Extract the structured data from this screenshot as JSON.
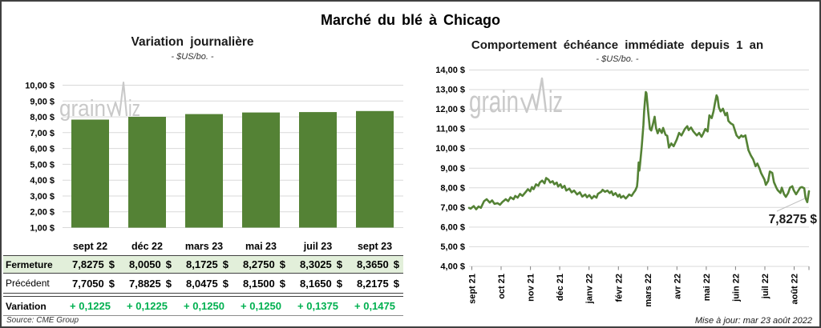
{
  "page": {
    "title": "Marché du blé à Chicago",
    "source": "Source: CME Group",
    "updated": "Mise à jour: mar 23 août 2022",
    "watermark": {
      "part1": "grain",
      "part2": "iz"
    }
  },
  "colors": {
    "green_bar": "#548235",
    "green_text": "#00B050",
    "row_highlight": "#E2EFDA",
    "gridline": "#D9D9D9",
    "watermark": "#C9C9C9",
    "tick": "#808080"
  },
  "table": {
    "col_headers": [
      "sept 22",
      "déc 22",
      "mars 23",
      "mai 23",
      "juil 23",
      "sept 23"
    ],
    "rows": [
      {
        "label": "Fermeture",
        "values": [
          "7,8275",
          "8,0050",
          "8,1725",
          "8,2750",
          "8,3025",
          "8,3650"
        ],
        "currency": "$",
        "highlight": true
      },
      {
        "label": "Précédent",
        "values": [
          "7,7050",
          "7,8825",
          "8,0475",
          "8,1500",
          "8,1650",
          "8,2175"
        ],
        "currency": "$",
        "highlight": false
      },
      {
        "label": "Variation",
        "values": [
          "+ 0,1225",
          "+ 0,1225",
          "+ 0,1250",
          "+ 0,1250",
          "+ 0,1375",
          "+ 0,1475"
        ],
        "positive": true
      }
    ]
  },
  "chart_data": [
    {
      "type": "bar",
      "title": "Variation journalière",
      "subtitle": "- $US/bo. -",
      "categories": [
        "sept 22",
        "déc 22",
        "mars 23",
        "mai 23",
        "juil 23",
        "sept 23"
      ],
      "values": [
        7.8275,
        8.005,
        8.1725,
        8.275,
        8.3025,
        8.365
      ],
      "ylim": [
        1,
        10
      ],
      "ytick_labels": [
        "10,00 $",
        "9,00 $",
        "8,00 $",
        "7,00 $",
        "6,00 $",
        "5,00 $",
        "4,00 $",
        "3,00 $",
        "2,00 $",
        "1,00 $"
      ]
    },
    {
      "type": "line",
      "title": "Comportement échéance immédiate depuis 1 an",
      "subtitle": "- $US/bo. -",
      "x_labels": [
        "sept 21",
        "oct 21",
        "nov 21",
        "déc 21",
        "janv 22",
        "févr 22",
        "mars 22",
        "avr 22",
        "mai 22",
        "juin 22",
        "juil 22",
        "août 22"
      ],
      "ylim": [
        4,
        14
      ],
      "ytick_labels": [
        "14,00 $",
        "13,00 $",
        "12,00 $",
        "11,00 $",
        "10,00 $",
        "9,00 $",
        "8,00 $",
        "7,00 $",
        "6,00 $",
        "5,00 $",
        "4,00 $"
      ],
      "last_value_label": "7,8275 $",
      "points": [
        [
          0,
          6.98
        ],
        [
          0.005,
          6.94
        ],
        [
          0.014,
          7.07
        ],
        [
          0.021,
          6.91
        ],
        [
          0.028,
          7.05
        ],
        [
          0.035,
          6.98
        ],
        [
          0.044,
          7.32
        ],
        [
          0.052,
          7.42
        ],
        [
          0.061,
          7.25
        ],
        [
          0.068,
          7.36
        ],
        [
          0.075,
          7.18
        ],
        [
          0.084,
          7.22
        ],
        [
          0.091,
          7.14
        ],
        [
          0.098,
          7.28
        ],
        [
          0.108,
          7.42
        ],
        [
          0.115,
          7.32
        ],
        [
          0.122,
          7.52
        ],
        [
          0.131,
          7.42
        ],
        [
          0.136,
          7.59
        ],
        [
          0.143,
          7.5
        ],
        [
          0.15,
          7.69
        ],
        [
          0.157,
          7.59
        ],
        [
          0.166,
          7.77
        ],
        [
          0.173,
          7.93
        ],
        [
          0.18,
          7.82
        ],
        [
          0.185,
          8.04
        ],
        [
          0.19,
          7.93
        ],
        [
          0.197,
          8.18
        ],
        [
          0.204,
          8.1
        ],
        [
          0.208,
          8.27
        ],
        [
          0.215,
          8.37
        ],
        [
          0.222,
          8.23
        ],
        [
          0.227,
          8.5
        ],
        [
          0.234,
          8.41
        ],
        [
          0.239,
          8.27
        ],
        [
          0.246,
          8.34
        ],
        [
          0.251,
          8.18
        ],
        [
          0.258,
          8.27
        ],
        [
          0.262,
          8.07
        ],
        [
          0.269,
          8.18
        ],
        [
          0.274,
          8.0
        ],
        [
          0.281,
          8.1
        ],
        [
          0.286,
          7.86
        ],
        [
          0.295,
          7.96
        ],
        [
          0.302,
          7.77
        ],
        [
          0.309,
          7.86
        ],
        [
          0.318,
          7.66
        ],
        [
          0.326,
          7.77
        ],
        [
          0.333,
          7.55
        ],
        [
          0.342,
          7.66
        ],
        [
          0.347,
          7.52
        ],
        [
          0.354,
          7.63
        ],
        [
          0.361,
          7.46
        ],
        [
          0.368,
          7.59
        ],
        [
          0.375,
          7.5
        ],
        [
          0.379,
          7.69
        ],
        [
          0.389,
          7.8
        ],
        [
          0.393,
          7.9
        ],
        [
          0.4,
          7.8
        ],
        [
          0.407,
          7.86
        ],
        [
          0.414,
          7.73
        ],
        [
          0.419,
          7.82
        ],
        [
          0.424,
          7.63
        ],
        [
          0.431,
          7.73
        ],
        [
          0.438,
          7.55
        ],
        [
          0.443,
          7.66
        ],
        [
          0.447,
          7.5
        ],
        [
          0.454,
          7.59
        ],
        [
          0.461,
          7.46
        ],
        [
          0.466,
          7.55
        ],
        [
          0.471,
          7.66
        ],
        [
          0.478,
          7.59
        ],
        [
          0.485,
          7.77
        ],
        [
          0.489,
          7.86
        ],
        [
          0.494,
          8.07
        ],
        [
          0.496,
          8.41
        ],
        [
          0.499,
          9.29
        ],
        [
          0.501,
          8.88
        ],
        [
          0.503,
          9.2
        ],
        [
          0.508,
          10.1
        ],
        [
          0.513,
          11.2
        ],
        [
          0.515,
          11.9
        ],
        [
          0.518,
          12.5
        ],
        [
          0.52,
          12.88
        ],
        [
          0.522,
          12.82
        ],
        [
          0.527,
          11.9
        ],
        [
          0.532,
          11.0
        ],
        [
          0.536,
          10.92
        ],
        [
          0.541,
          11.25
        ],
        [
          0.546,
          11.62
        ],
        [
          0.55,
          11.05
        ],
        [
          0.555,
          10.78
        ],
        [
          0.56,
          11.0
        ],
        [
          0.567,
          10.8
        ],
        [
          0.571,
          11.05
        ],
        [
          0.578,
          10.7
        ],
        [
          0.583,
          10.65
        ],
        [
          0.588,
          10.05
        ],
        [
          0.595,
          10.26
        ],
        [
          0.602,
          10.12
        ],
        [
          0.611,
          10.46
        ],
        [
          0.618,
          10.8
        ],
        [
          0.625,
          10.67
        ],
        [
          0.635,
          11.0
        ],
        [
          0.642,
          11.14
        ],
        [
          0.646,
          10.94
        ],
        [
          0.653,
          11.07
        ],
        [
          0.66,
          10.87
        ],
        [
          0.67,
          10.67
        ],
        [
          0.677,
          10.8
        ],
        [
          0.684,
          10.6
        ],
        [
          0.688,
          10.73
        ],
        [
          0.695,
          11.0
        ],
        [
          0.702,
          10.87
        ],
        [
          0.707,
          11.69
        ],
        [
          0.714,
          11.55
        ],
        [
          0.719,
          11.89
        ],
        [
          0.724,
          12.37
        ],
        [
          0.728,
          12.71
        ],
        [
          0.731,
          12.61
        ],
        [
          0.735,
          12.1
        ],
        [
          0.74,
          11.89
        ],
        [
          0.747,
          12.03
        ],
        [
          0.754,
          11.69
        ],
        [
          0.759,
          11.82
        ],
        [
          0.763,
          11.41
        ],
        [
          0.77,
          11.28
        ],
        [
          0.777,
          11.21
        ],
        [
          0.787,
          10.67
        ],
        [
          0.794,
          10.53
        ],
        [
          0.801,
          10.67
        ],
        [
          0.806,
          10.6
        ],
        [
          0.813,
          10.67
        ],
        [
          0.822,
          9.92
        ],
        [
          0.829,
          9.65
        ],
        [
          0.836,
          9.44
        ],
        [
          0.843,
          9.1
        ],
        [
          0.848,
          9.24
        ],
        [
          0.855,
          8.97
        ],
        [
          0.859,
          8.76
        ],
        [
          0.869,
          8.42
        ],
        [
          0.873,
          8.15
        ],
        [
          0.88,
          8.35
        ],
        [
          0.885,
          8.83
        ],
        [
          0.892,
          8.76
        ],
        [
          0.897,
          8.29
        ],
        [
          0.904,
          8.01
        ],
        [
          0.908,
          7.88
        ],
        [
          0.916,
          7.74
        ],
        [
          0.92,
          8.01
        ],
        [
          0.927,
          7.67
        ],
        [
          0.932,
          7.54
        ],
        [
          0.939,
          7.74
        ],
        [
          0.944,
          8.01
        ],
        [
          0.951,
          8.08
        ],
        [
          0.955,
          7.88
        ],
        [
          0.962,
          7.67
        ],
        [
          0.967,
          7.81
        ],
        [
          0.974,
          8.01
        ],
        [
          0.979,
          8.04
        ],
        [
          0.986,
          7.98
        ],
        [
          0.99,
          7.47
        ],
        [
          0.995,
          7.27
        ],
        [
          1.0,
          7.83
        ]
      ]
    }
  ]
}
